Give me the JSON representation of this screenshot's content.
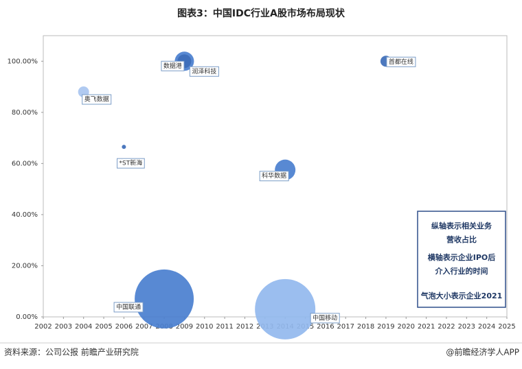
{
  "chart_data": {
    "type": "bubble",
    "title": "图表3：中国IDC行业A股市场布局现状",
    "labels": [
      "奥飞数据",
      "*ST新海",
      "中国联通",
      "数据港",
      "润泽科技",
      "科华数据",
      "中国移动",
      "首都在线"
    ],
    "x": [
      2004,
      2006,
      2008,
      2009,
      2009,
      2014,
      2014,
      2019
    ],
    "values": [
      88,
      66.5,
      7,
      100,
      100,
      57.5,
      3,
      100
    ],
    "sizes": [
      64,
      9,
      1849,
      196,
      100,
      225,
      1936,
      64
    ],
    "colors": [
      "#a9c6f0",
      "#3d6db8",
      "#4a7fcf",
      "#4a7fcf",
      "#3d6db8",
      "#4a7fcf",
      "#93b9ee",
      "#3d6db8"
    ],
    "xlim": [
      2002,
      2025
    ],
    "xticks": [
      2002,
      2003,
      2004,
      2005,
      2006,
      2007,
      2008,
      2009,
      2010,
      2011,
      2012,
      2013,
      2014,
      2015,
      2016,
      2017,
      2018,
      2019,
      2020,
      2021,
      2022,
      2023,
      2024,
      2025
    ],
    "ylim": [
      0,
      110
    ],
    "yticks": [
      {
        "value": 0,
        "label": "0.00%"
      },
      {
        "value": 20,
        "label": "20.00%"
      },
      {
        "value": 40,
        "label": "40.00%"
      },
      {
        "value": 60,
        "label": "60.00%"
      },
      {
        "value": 80,
        "label": "80.00%"
      },
      {
        "value": 100,
        "label": "100.00%"
      }
    ],
    "annotations": [
      "纵轴表示相关业务",
      "营收占比",
      "横轴表示企业IPO后",
      "介入行业的时间",
      "气泡大小表示企业2021"
    ]
  },
  "source": "资料来源：公司公报 前瞻产业研究院",
  "credit": "@前瞻经济学人APP"
}
